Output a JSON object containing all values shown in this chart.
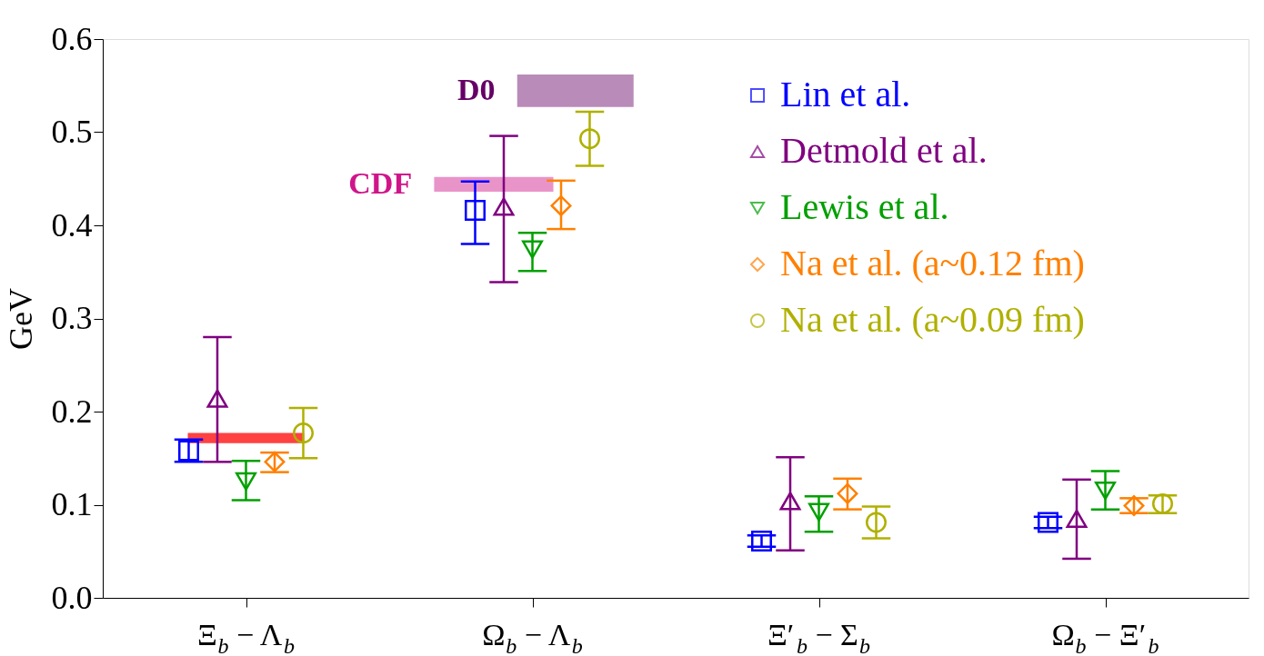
{
  "chart_data": {
    "type": "scatter",
    "ylabel": "GeV",
    "categories": [
      "Ξ$_{b}$ − Λ$_{b}$",
      "Ω$_{b}$ − Λ$_{b}$",
      "Ξ′$_{b}$ − Σ$_{b}$",
      "Ω$_{b}$ − Ξ′$_{b}$"
    ],
    "ylim": [
      0,
      0.6
    ],
    "yticks": [
      {
        "value": 0,
        "label": "0.0"
      },
      0.1,
      0.2,
      0.3,
      0.4,
      0.5,
      0.6
    ],
    "grid": false,
    "legend": "top right",
    "series": [
      {
        "name": "Lin et al.",
        "color": "#0000ff",
        "marker": "square",
        "values": [
          0.158,
          0.416,
          0.061,
          0.081
        ],
        "errors": [
          0.012,
          [
            0.38,
            0.447
          ],
          0.006,
          0.006
        ]
      },
      {
        "name": "Detmold et al.",
        "color": "#800080",
        "marker": "triangle",
        "values": [
          0.214,
          0.42,
          0.104,
          0.085
        ],
        "errors": [
          [
            0.146,
            0.28
          ],
          [
            0.339,
            0.496
          ],
          [
            0.051,
            0.151
          ],
          [
            0.042,
            0.127
          ]
        ]
      },
      {
        "name": "Lewis et al.",
        "color": "#00a000",
        "marker": "triangle-down",
        "values": [
          0.125,
          0.374,
          0.092,
          0.115
        ],
        "errors": [
          [
            0.105,
            0.147
          ],
          [
            0.351,
            0.392
          ],
          [
            0.071,
            0.109
          ],
          [
            0.095,
            0.136
          ]
        ]
      },
      {
        "name": "Na et al. (a~0.12 fm)",
        "color": "#ff8000",
        "marker": "diamond",
        "values": [
          0.146,
          0.421,
          0.112,
          0.099
        ],
        "errors": [
          [
            0.135,
            0.156
          ],
          [
            0.396,
            0.448
          ],
          [
            0.095,
            0.128
          ],
          [
            0.091,
            0.107
          ]
        ]
      },
      {
        "name": "Na et al. (a~0.09 fm)",
        "color": "#b0b000",
        "marker": "circle",
        "values": [
          0.177,
          0.493,
          0.081,
          0.101
        ],
        "errors": [
          [
            0.15,
            0.204
          ],
          [
            0.464,
            0.522
          ],
          [
            0.064,
            0.098
          ],
          [
            0.091,
            0.11
          ]
        ]
      }
    ],
    "bands": [
      {
        "axis": "y",
        "from": 0.167,
        "to": 0.176,
        "label": null,
        "color": "#ff2020"
      },
      {
        "axis": "y",
        "from": 0.437,
        "to": 0.451,
        "label": "CDF",
        "color": "#d0158a"
      },
      {
        "axis": "y",
        "from": 0.528,
        "to": 0.561,
        "label": "D0",
        "color": "#660066"
      }
    ]
  }
}
